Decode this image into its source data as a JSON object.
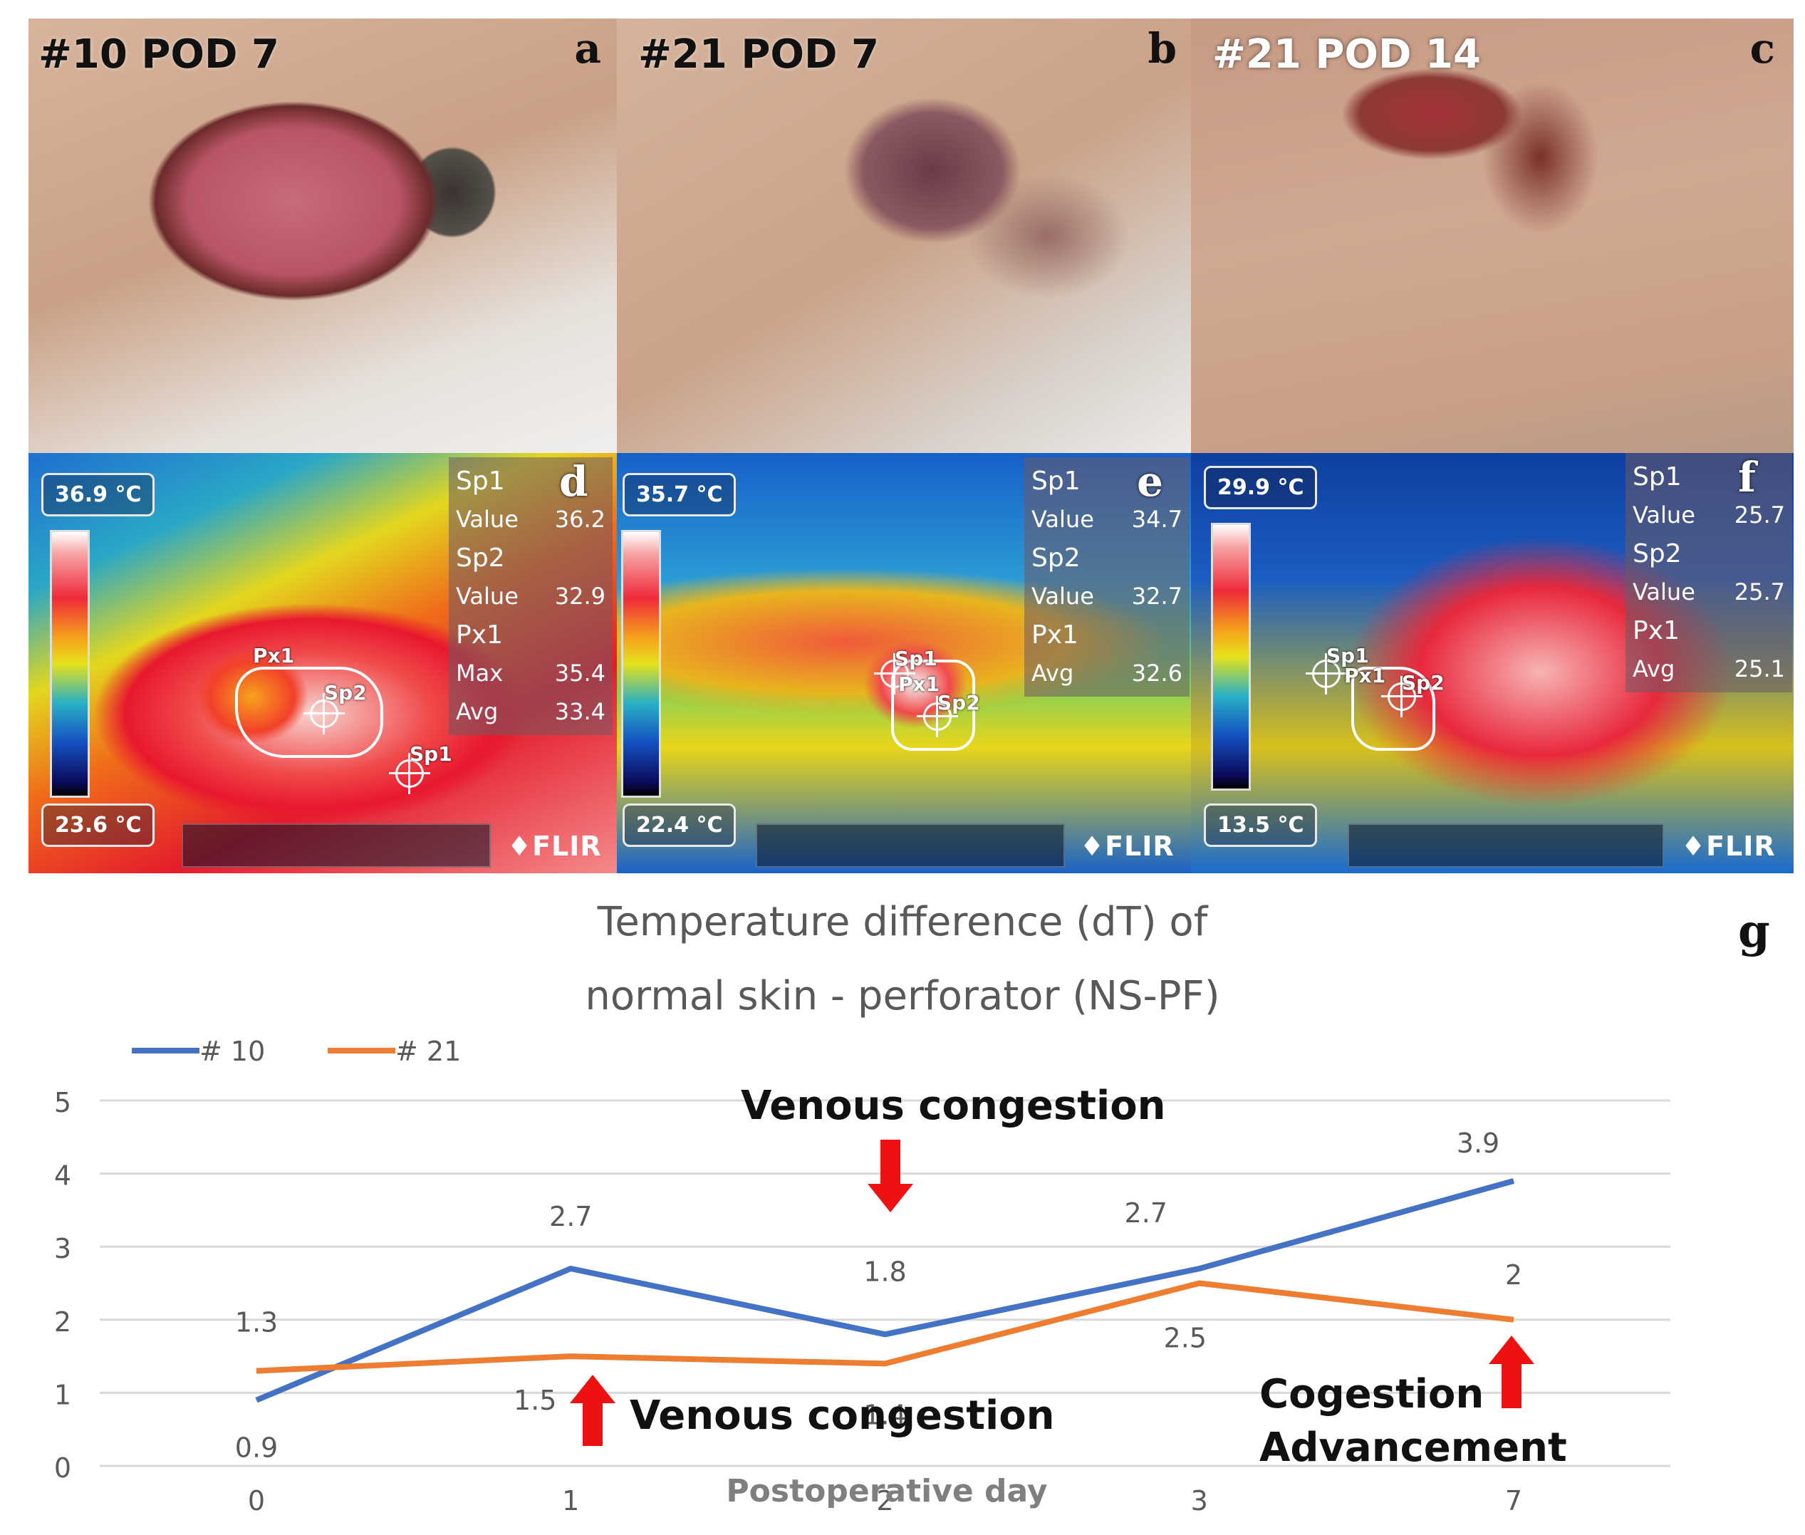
{
  "panels": {
    "a": {
      "title": "#10 POD 7",
      "letter": "a"
    },
    "b": {
      "title": "#21 POD 7",
      "letter": "b"
    },
    "c": {
      "title": "#21 POD 14",
      "letter": "c"
    },
    "d": {
      "letter": "d",
      "max_temp": "36.9  °C",
      "min_temp": "23.6  °C",
      "readouts": [
        {
          "k": "Sp1",
          "v": ""
        },
        {
          "k": "Value",
          "v": "36.2"
        },
        {
          "k": "Sp2",
          "v": ""
        },
        {
          "k": "Value",
          "v": "32.9"
        },
        {
          "k": "Px1",
          "v": ""
        },
        {
          "k": "Max",
          "v": "35.4"
        },
        {
          "k": "Avg",
          "v": "33.4"
        }
      ],
      "roi": {
        "px": "Px1",
        "sp2": "Sp2",
        "sp1": "Sp1"
      },
      "brand": "♦FLIR"
    },
    "e": {
      "letter": "e",
      "max_temp": "35.7  °C",
      "min_temp": "22.4  °C",
      "readouts": [
        {
          "k": "Sp1",
          "v": ""
        },
        {
          "k": "Value",
          "v": "34.7"
        },
        {
          "k": "Sp2",
          "v": ""
        },
        {
          "k": "Value",
          "v": "32.7"
        },
        {
          "k": "Px1",
          "v": ""
        },
        {
          "k": "Avg",
          "v": "32.6"
        }
      ],
      "roi": {
        "px": "Px1",
        "sp2": "Sp2",
        "sp1": "Sp1"
      },
      "brand": "♦FLIR"
    },
    "f": {
      "letter": "f",
      "max_temp": "29.9  °C",
      "min_temp": "13.5  °C",
      "readouts": [
        {
          "k": "Sp1",
          "v": ""
        },
        {
          "k": "Value",
          "v": "25.7"
        },
        {
          "k": "Sp2",
          "v": ""
        },
        {
          "k": "Value",
          "v": "25.7"
        },
        {
          "k": "Px1",
          "v": ""
        },
        {
          "k": "Avg",
          "v": "25.1"
        }
      ],
      "roi": {
        "px": "Px1",
        "sp2": "Sp2",
        "sp1": "Sp1"
      },
      "brand": "♦FLIR"
    }
  },
  "chart_letter": "g",
  "chart_data": {
    "type": "line",
    "title": "Temperature difference (dT) of",
    "subtitle": "normal skin - perforator (NS-PF)",
    "xlabel": "Postoperative day",
    "ylabel": "",
    "categories": [
      "0",
      "1",
      "2",
      "3",
      "7"
    ],
    "ylim": [
      0,
      5
    ],
    "yticks": [
      0,
      1,
      2,
      3,
      4,
      5
    ],
    "grid": true,
    "legend": "top-left",
    "series": [
      {
        "name": "# 10",
        "color": "#4472c4",
        "values": [
          0.9,
          2.7,
          1.8,
          2.7,
          3.9
        ],
        "labels": [
          "0.9",
          "2.7",
          "1.8",
          "2.7",
          "3.9"
        ]
      },
      {
        "name": "# 21",
        "color": "#ed7d31",
        "values": [
          1.3,
          1.5,
          1.4,
          2.5,
          2
        ],
        "labels": [
          "1.3",
          "1.5",
          "1.4",
          "2.5",
          "2"
        ]
      }
    ],
    "annotations": [
      {
        "text": "Venous congestion",
        "arrow": "down"
      },
      {
        "text": "Venous congestion",
        "arrow": "up"
      },
      {
        "text": "Cogestion",
        "arrow": "up"
      },
      {
        "text": "Advancement",
        "arrow": ""
      }
    ],
    "arrow_color": "#ee1111"
  }
}
